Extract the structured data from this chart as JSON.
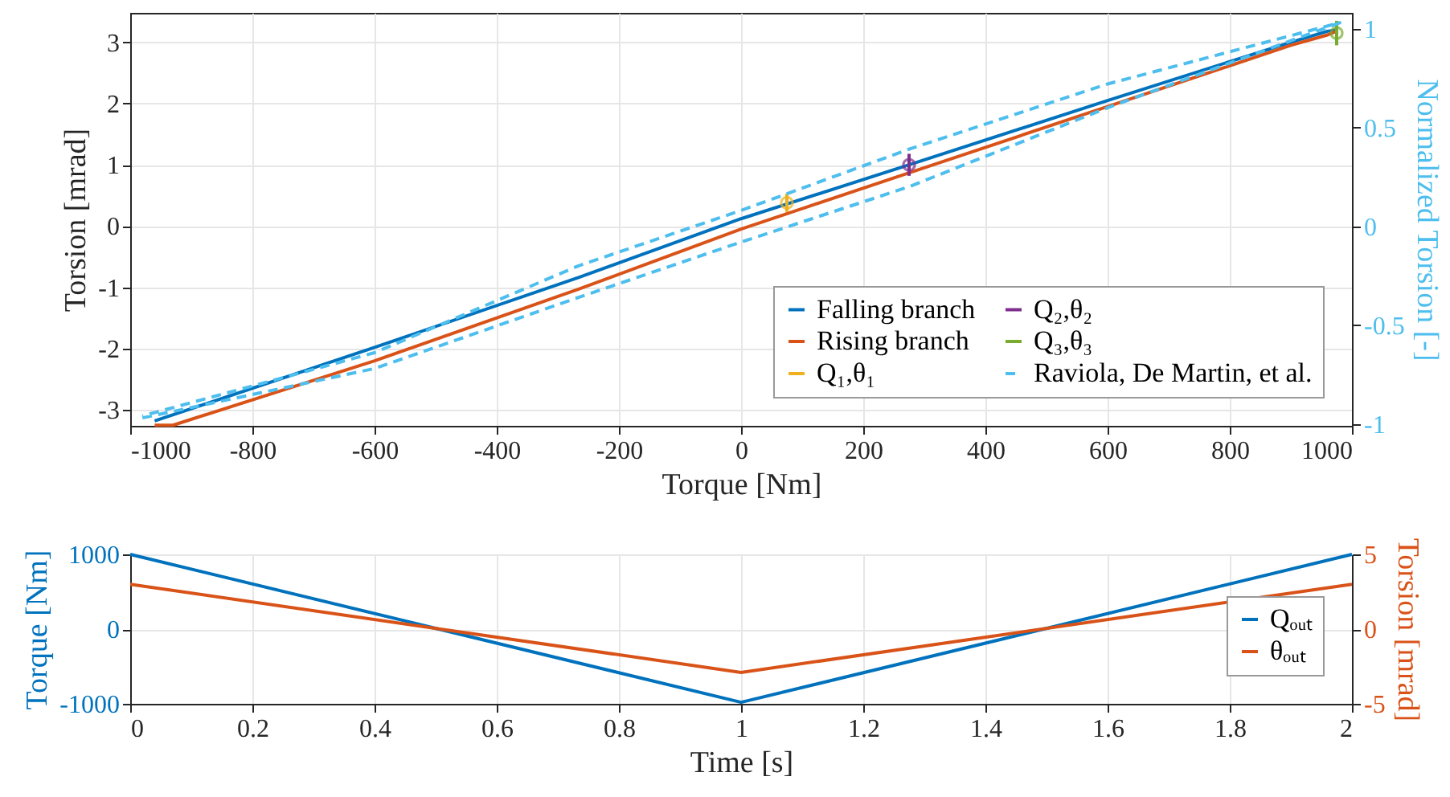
{
  "chart_data": [
    {
      "type": "line",
      "xlabel": "Torque [Nm]",
      "ylabel": "Torsion [mrad]",
      "y2label": "Normalized Torsion [-]",
      "xlim": [
        -1000,
        1000
      ],
      "xticks": [
        -1000,
        -800,
        -600,
        -400,
        -200,
        0,
        200,
        400,
        600,
        800,
        1000
      ],
      "ylim": [
        -3.26,
        3.48
      ],
      "yticks": [
        -3,
        -2,
        -1,
        0,
        1,
        2,
        3
      ],
      "y2lim": [
        -1.01,
        1.08
      ],
      "y2ticks": [
        -1,
        -0.5,
        0,
        0.5,
        1
      ],
      "grid": true,
      "legend": "bottom right",
      "series": [
        {
          "name": "Falling branch",
          "color": "#0072bd",
          "x": [
            975,
            960,
            900,
            600,
            275,
            0,
            -266,
            -600,
            -960
          ],
          "values": [
            3.2,
            3.18,
            3.0,
            2.05,
            1.0,
            0.12,
            -0.84,
            -1.98,
            -3.18
          ]
        },
        {
          "name": "Rising branch",
          "color": "#d95319",
          "x": [
            -960,
            -930,
            -600,
            -266,
            0,
            275,
            600,
            900,
            960,
            975
          ],
          "values": [
            -3.25,
            -3.25,
            -2.2,
            -1.03,
            -0.05,
            0.87,
            1.95,
            2.95,
            3.12,
            3.18
          ]
        },
        {
          "name": "Q₁,θ₁",
          "type": "scatter",
          "marker": "circle",
          "color": "#edb120",
          "x": [
            75
          ],
          "values": [
            0.38
          ],
          "errors": [
            0.15
          ]
        },
        {
          "name": "Q₂,θ₂",
          "type": "scatter",
          "marker": "circle",
          "color": "#7e2f8e",
          "x": [
            275
          ],
          "values": [
            1.0
          ],
          "errors": [
            0.18
          ]
        },
        {
          "name": "Q₃,θ₃",
          "type": "scatter",
          "marker": "circle",
          "color": "#77ac30",
          "x": [
            975
          ],
          "values": [
            3.15
          ],
          "errors": [
            0.2
          ]
        },
        {
          "name": "Raviola, De Martin, et al.",
          "color": "#4dbeee",
          "axis": "y2",
          "line_style": "dashed",
          "x": [
            -980,
            -600,
            -266,
            0,
            275,
            600,
            980,
            600,
            275,
            0,
            -266,
            -600,
            -980
          ],
          "values": [
            -0.97,
            -0.72,
            -0.36,
            -0.08,
            0.2,
            0.6,
            1.03,
            0.72,
            0.39,
            0.08,
            -0.2,
            -0.64,
            -0.96
          ]
        }
      ]
    },
    {
      "type": "line",
      "xlabel": "Time [s]",
      "ylabel": "Torque [Nm]",
      "y2label": "Torsion [mrad]",
      "xlim": [
        0,
        2
      ],
      "xticks": [
        0,
        0.2,
        0.4,
        0.6,
        0.8,
        1,
        1.2,
        1.4,
        1.6,
        1.8,
        2
      ],
      "ylim": [
        -1000,
        1000
      ],
      "yticks": [
        -1000,
        0,
        1000
      ],
      "y2lim": [
        -5,
        5
      ],
      "y2ticks": [
        -5,
        0,
        5
      ],
      "grid": true,
      "legend": "bottom right",
      "series": [
        {
          "name": "Qₒᵤₜ",
          "color": "#0072bd",
          "x": [
            0,
            1,
            2
          ],
          "values": [
            1000,
            -980,
            1000
          ]
        },
        {
          "name": "θₒᵤₜ",
          "color": "#d95319",
          "axis": "y2",
          "x": [
            0,
            1,
            2
          ],
          "values": [
            3.0,
            -2.9,
            3.0
          ]
        }
      ]
    }
  ]
}
